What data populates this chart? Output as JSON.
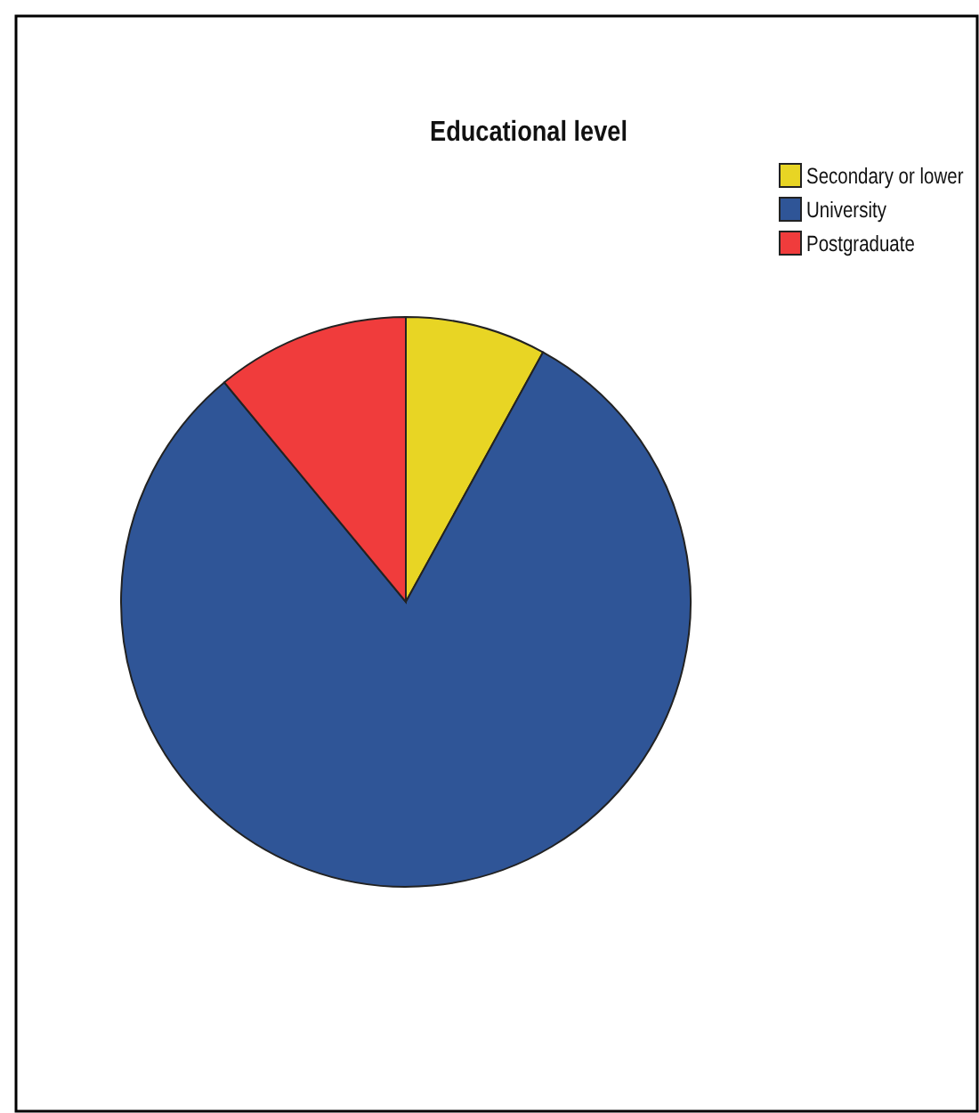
{
  "chart_data": {
    "type": "pie",
    "title": "Educational level",
    "categories": [
      "Secondary or lower",
      "University",
      "Postgraduate"
    ],
    "values": [
      8,
      81,
      11
    ],
    "colors": [
      "#e8d524",
      "#2f5597",
      "#f03c3c"
    ],
    "legend": "top right"
  }
}
